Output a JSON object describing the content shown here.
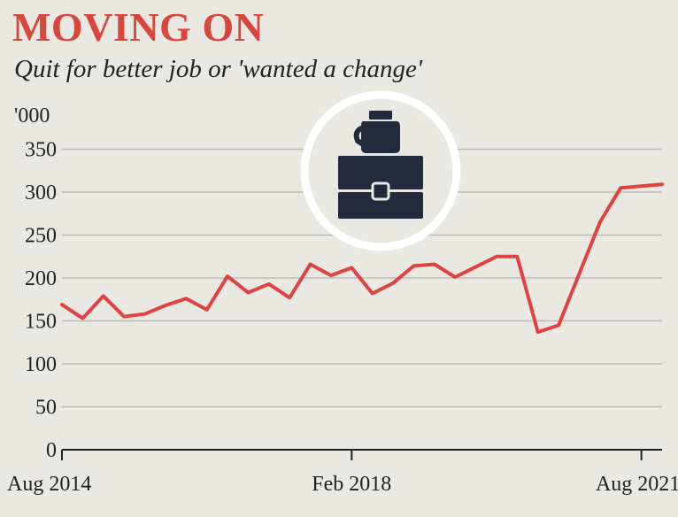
{
  "chart_data": {
    "type": "line",
    "title": "MOVING ON",
    "subtitle": "Quit for better job or 'wanted a change'",
    "unit_label": "'000",
    "ylim": [
      0,
      360
    ],
    "yticks": [
      0,
      50,
      100,
      150,
      200,
      250,
      300,
      350
    ],
    "grid": true,
    "x_tick_labels": [
      {
        "label": "Aug 2014",
        "x": 2014.58
      },
      {
        "label": "Feb 2018",
        "x": 2018.08
      },
      {
        "label": "Aug 2021",
        "x": 2021.58
      }
    ],
    "line_color": "#e0433f",
    "series": [
      {
        "x": [
          2014.58,
          2014.83,
          2015.08,
          2015.33,
          2015.58,
          2015.83,
          2016.08,
          2016.33,
          2016.58,
          2016.83,
          2017.08,
          2017.33,
          2017.58,
          2017.83,
          2018.08,
          2018.33,
          2018.58,
          2018.83,
          2019.08,
          2019.33,
          2019.58,
          2019.83,
          2020.08,
          2020.33,
          2020.58,
          2020.83,
          2021.08,
          2021.33,
          2021.58,
          2021.83
        ],
        "values": [
          169,
          153,
          179,
          155,
          158,
          168,
          176,
          163,
          202,
          183,
          193,
          177,
          216,
          203,
          212,
          182,
          194,
          214,
          216,
          201,
          213,
          225,
          225,
          137,
          145,
          205,
          265,
          305,
          307,
          309
        ]
      }
    ]
  },
  "icon": "briefcase-in-hand-icon"
}
